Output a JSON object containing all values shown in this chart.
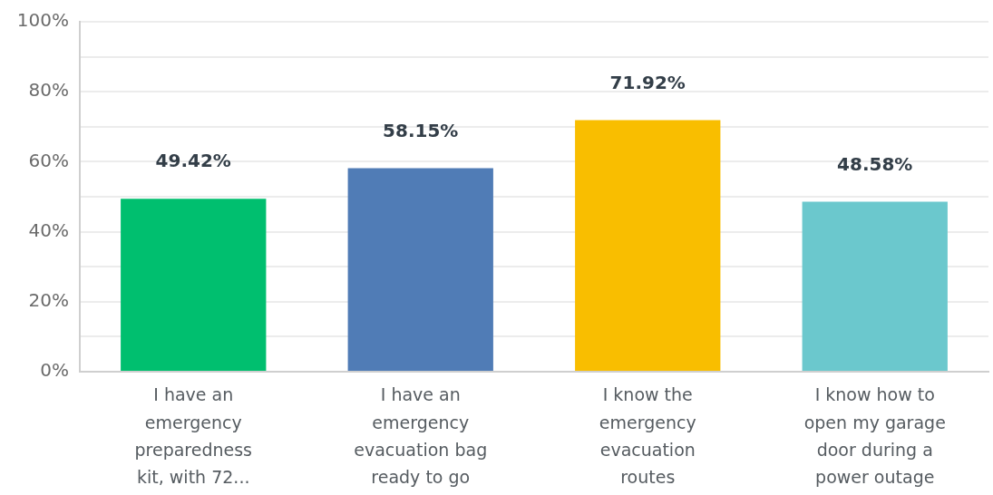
{
  "chart_data": {
    "type": "bar",
    "categories": [
      "I have an emergency preparedness kit, with 72...",
      "I have an emergency evacuation bag ready to go",
      "I know the emergency evacuation routes",
      "I know how to open my garage door during a power outage"
    ],
    "values": [
      49.42,
      58.15,
      71.92,
      48.58
    ],
    "colors": [
      "#00bf6f",
      "#507cb6",
      "#f9be00",
      "#6bc8cd"
    ],
    "value_labels": [
      "49.42%",
      "58.15%",
      "71.92%",
      "48.58%"
    ],
    "ylim": [
      0,
      100
    ],
    "yticks": [
      {
        "value": 0,
        "label": "0%"
      },
      {
        "value": 10,
        "label": null
      },
      {
        "value": 20,
        "label": "20%"
      },
      {
        "value": 30,
        "label": null
      },
      {
        "value": 40,
        "label": "40%"
      },
      {
        "value": 50,
        "label": null
      },
      {
        "value": 60,
        "label": "60%"
      },
      {
        "value": 70,
        "label": null
      },
      {
        "value": 80,
        "label": "80%"
      },
      {
        "value": 90,
        "label": null
      },
      {
        "value": 100,
        "label": "100%"
      }
    ],
    "grid": "y"
  }
}
